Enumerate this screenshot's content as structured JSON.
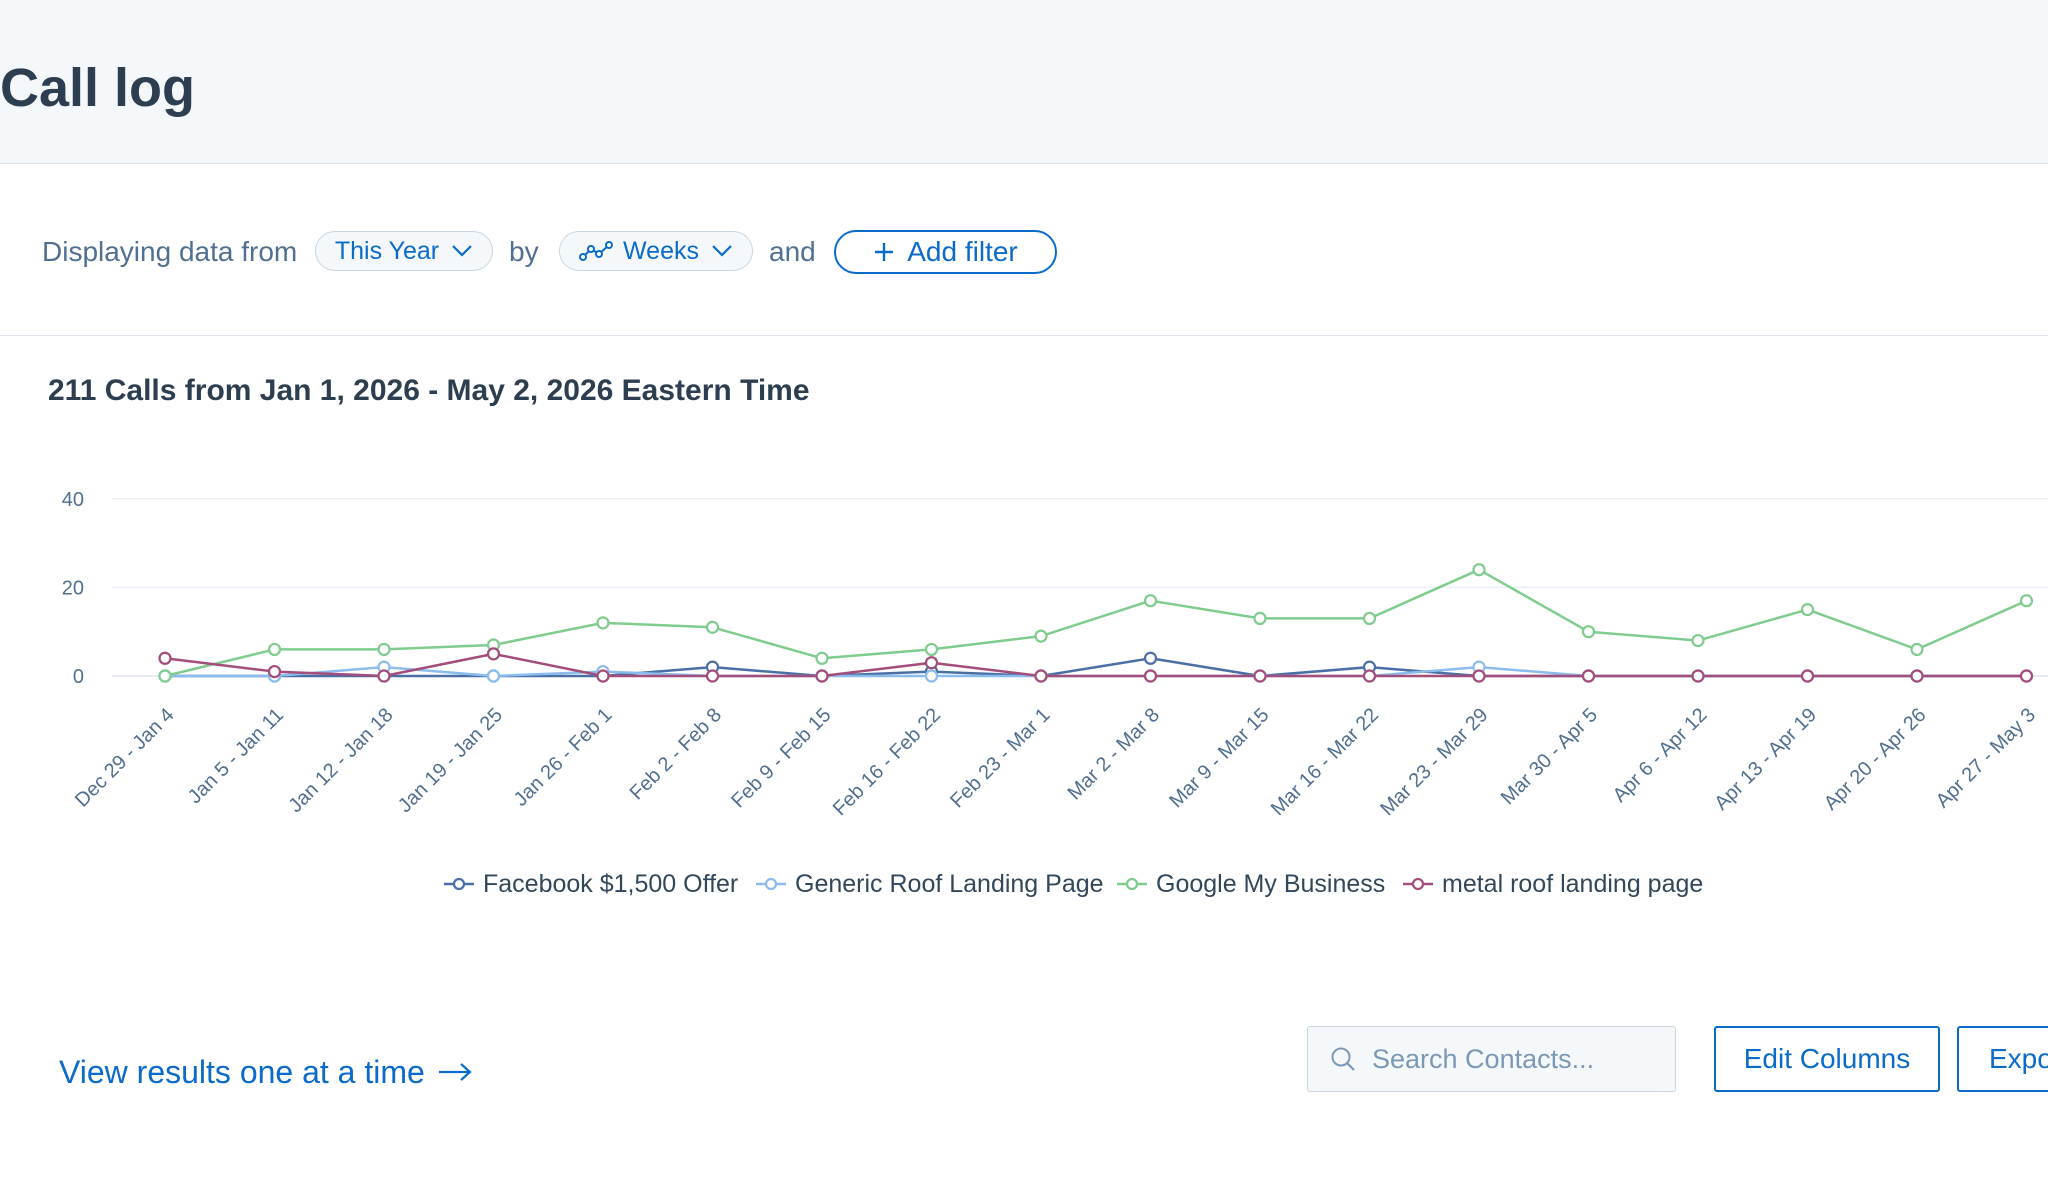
{
  "header": {
    "title": "Call log"
  },
  "filter_bar": {
    "prefix": "Displaying data from",
    "date_range": "This Year",
    "by": "by",
    "interval": "Weeks",
    "and": "and",
    "add_filter": "Add filter"
  },
  "chart_data": {
    "type": "line",
    "title": "211 Calls from Jan 1, 2026 - May 2, 2026 Eastern Time",
    "categories": [
      "Dec 29 - Jan 4",
      "Jan 5 - Jan 11",
      "Jan 12 - Jan 18",
      "Jan 19 - Jan 25",
      "Jan 26 - Feb 1",
      "Feb 2 - Feb 8",
      "Feb 9 - Feb 15",
      "Feb 16 - Feb 22",
      "Feb 23 - Mar 1",
      "Mar 2 - Mar 8",
      "Mar 9 - Mar 15",
      "Mar 16 - Mar 22",
      "Mar 23 - Mar 29",
      "Mar 30 - Apr 5",
      "Apr 6 - Apr 12",
      "Apr 13 - Apr 19",
      "Apr 20 - Apr 26",
      "Apr 27 - May 3"
    ],
    "y_ticks": [
      0,
      20,
      40
    ],
    "ylim": [
      0,
      40
    ],
    "grid": true,
    "legend_position": "bottom",
    "series": [
      {
        "name": "Facebook $1,500 Offer",
        "color": "#4a6fa5",
        "values": [
          0,
          0,
          0,
          0,
          0,
          2,
          0,
          1,
          0,
          4,
          0,
          2,
          0,
          0,
          0,
          0,
          0,
          0
        ]
      },
      {
        "name": "Generic Roof Landing Page",
        "color": "#8cbcee",
        "values": [
          0,
          0,
          2,
          0,
          1,
          0,
          0,
          0,
          0,
          0,
          0,
          0,
          2,
          0,
          0,
          0,
          0,
          0
        ]
      },
      {
        "name": "Google My Business",
        "color": "#7fcc8e",
        "values": [
          0,
          6,
          6,
          7,
          12,
          11,
          4,
          6,
          9,
          17,
          13,
          13,
          24,
          10,
          8,
          15,
          6,
          17
        ]
      },
      {
        "name": "metal roof landing page",
        "color": "#a34d7b",
        "values": [
          4,
          1,
          0,
          5,
          0,
          0,
          0,
          3,
          0,
          0,
          0,
          0,
          0,
          0,
          0,
          0,
          0,
          0
        ]
      }
    ]
  },
  "footer": {
    "view_link": "View results one at a time",
    "search_placeholder": "Search Contacts...",
    "edit_columns": "Edit Columns",
    "export": "Expo"
  }
}
